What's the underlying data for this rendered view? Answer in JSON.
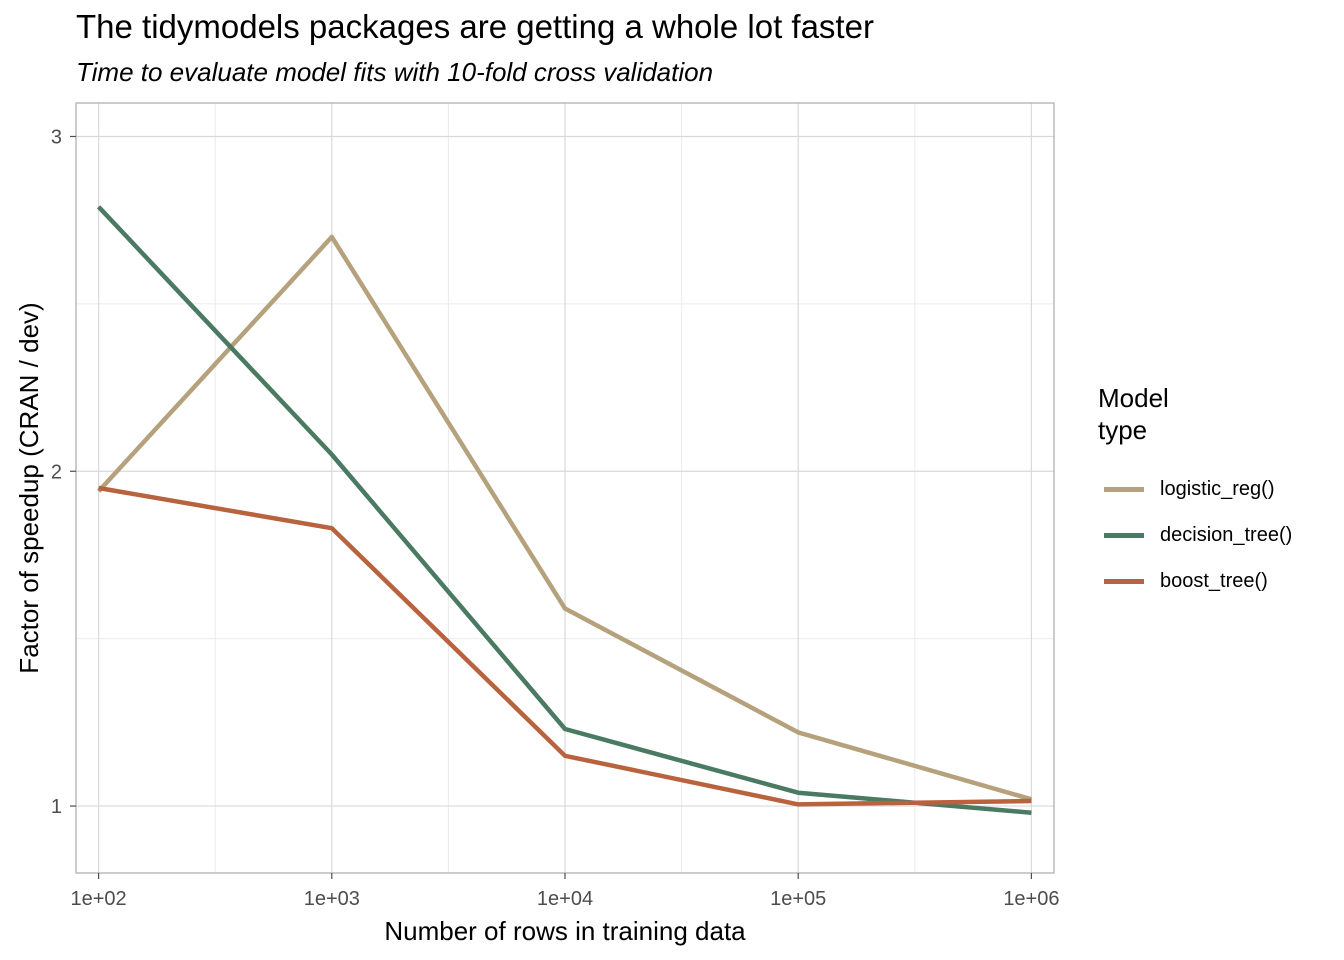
{
  "chart_data": {
    "type": "line",
    "title": "The tidymodels packages are getting a whole lot faster",
    "subtitle": "Time to evaluate model fits with 10-fold cross validation",
    "xlabel": "Number of rows in training data",
    "ylabel": "Factor of speedup (CRAN / dev)",
    "x_scale": "log10",
    "x": [
      100,
      1000,
      10000,
      100000,
      1000000
    ],
    "x_tick_labels": [
      "1e+02",
      "1e+03",
      "1e+04",
      "1e+05",
      "1e+06"
    ],
    "y_ticks": [
      1,
      2,
      3
    ],
    "y_tick_labels": [
      "1",
      "2",
      "3"
    ],
    "xlim": [
      80,
      1250000
    ],
    "ylim": [
      0.8,
      3.1
    ],
    "grid": true,
    "legend": {
      "title": "Model\ntype",
      "position": "right"
    },
    "series": [
      {
        "name": "logistic_reg()",
        "color": "#B5A27D",
        "values": [
          1.94,
          2.7,
          1.59,
          1.22,
          1.02
        ]
      },
      {
        "name": "decision_tree()",
        "color": "#4A7A62",
        "values": [
          2.79,
          2.05,
          1.23,
          1.04,
          0.98
        ]
      },
      {
        "name": "boost_tree()",
        "color": "#B8633E",
        "values": [
          1.95,
          1.83,
          1.15,
          1.005,
          1.015
        ]
      }
    ]
  }
}
